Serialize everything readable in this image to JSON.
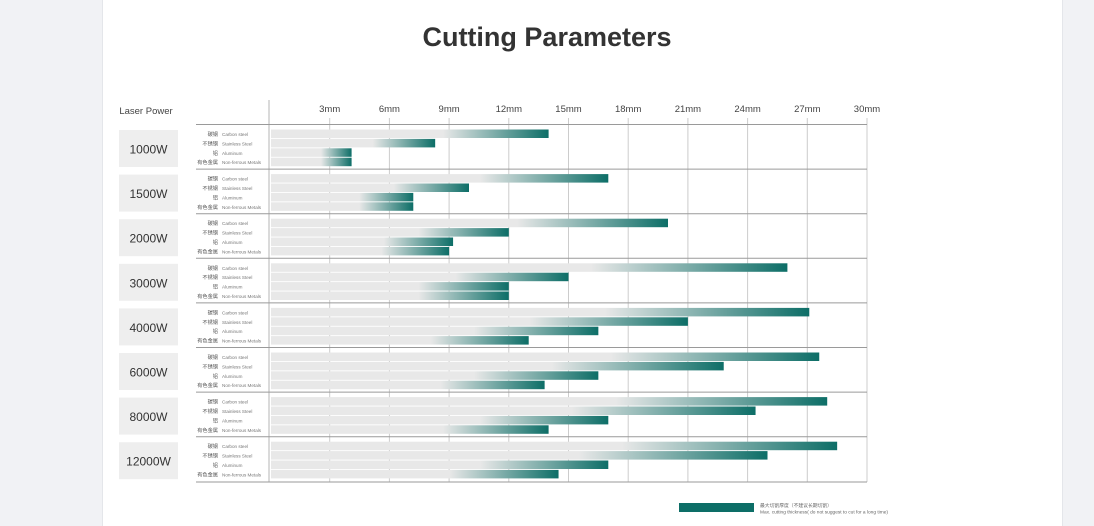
{
  "page": {
    "title": "Cutting Parameters"
  },
  "colors": {
    "bar_start": "#e8e8e8",
    "bar_end": "#0d6e67",
    "grid": "#cccccc",
    "row_line": "#9a9a9a",
    "box_fill": "#eeeeee"
  },
  "chart_data": {
    "type": "bar",
    "orientation": "horizontal",
    "title": "",
    "xlabel": "",
    "ylabel": "Laser Power",
    "xlim": [
      0,
      30
    ],
    "xticks": [
      "3mm",
      "6mm",
      "9mm",
      "12mm",
      "15mm",
      "18mm",
      "21mm",
      "24mm",
      "27mm",
      "30mm"
    ],
    "xtick_values": [
      3,
      6,
      9,
      12,
      15,
      18,
      21,
      24,
      27,
      30
    ],
    "materials": [
      {
        "zh": "碳钢",
        "en": "Carbon steel"
      },
      {
        "zh": "不锈钢",
        "en": "Stainless Steel"
      },
      {
        "zh": "铝",
        "en": "Aluminum"
      },
      {
        "zh": "有色金属",
        "en": "Non-ferrous Metals"
      }
    ],
    "groups": [
      {
        "power": "1000W",
        "values": [
          14,
          8.3,
          4.1,
          4.1
        ]
      },
      {
        "power": "1500W",
        "values": [
          17,
          10,
          7.2,
          7.2
        ]
      },
      {
        "power": "2000W",
        "values": [
          20,
          12,
          9.2,
          9
        ]
      },
      {
        "power": "3000W",
        "values": [
          26,
          15,
          12,
          12
        ]
      },
      {
        "power": "4000W",
        "values": [
          27.1,
          21,
          16.5,
          13
        ]
      },
      {
        "power": "6000W",
        "values": [
          27.6,
          22.8,
          16.5,
          13.8
        ]
      },
      {
        "power": "8000W",
        "values": [
          28,
          24.4,
          17,
          14
        ]
      },
      {
        "power": "12000W",
        "values": [
          28.5,
          25,
          17,
          14.5
        ]
      }
    ],
    "legend": {
      "zh": "最大切割厚度（不建议长期切割）",
      "en": "Max. cutting thickness( do not suggest to cut for a long time)",
      "placement": "bottom-right"
    },
    "grid": true
  }
}
